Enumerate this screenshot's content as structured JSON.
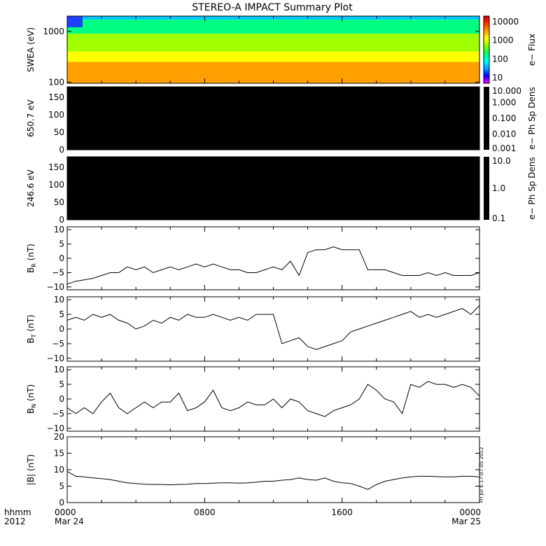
{
  "title": "STEREO-A IMPACT Summary Plot",
  "time_axis": {
    "label_line1": "hhmm",
    "label_line2": "2012",
    "ticks": [
      {
        "hour": 0,
        "label": "0000",
        "date": "Mar 24"
      },
      {
        "hour": 8,
        "label": "0800",
        "date": ""
      },
      {
        "hour": 16,
        "label": "1600",
        "date": ""
      },
      {
        "hour": 24,
        "label": "0000",
        "date": "Mar 25"
      }
    ]
  },
  "timestamp": "Fri Jul  6 17:07:05 2012",
  "colors": {
    "trace": "#000000",
    "frame": "#000000",
    "panel_fill": "#000000"
  },
  "chart_data": [
    {
      "type": "heatmap",
      "panel": "swea",
      "ylabel": "SWEA (eV)",
      "y_scale": "log",
      "ylim": [
        95,
        2000
      ],
      "yticks": [
        {
          "value": 100,
          "label": "100"
        },
        {
          "value": 1000,
          "label": "1000"
        }
      ],
      "colorbar": {
        "label": "e− Flux",
        "scale": "log",
        "range": [
          5,
          20000
        ],
        "ticks": [
          {
            "value": 10,
            "label": "10"
          },
          {
            "value": 100,
            "label": "100"
          },
          {
            "value": 1000,
            "label": "1000"
          },
          {
            "value": 10000,
            "label": "10000"
          }
        ],
        "colors": [
          "#ff00ff",
          "#0000ff",
          "#00a0ff",
          "#00ffff",
          "#00ff60",
          "#80ff00",
          "#ffff00",
          "#ffa000",
          "#ff3000",
          "#d00000"
        ]
      },
      "band_edges_ev": [
        1700,
        900,
        400,
        250
      ]
    },
    {
      "type": "heatmap",
      "panel": "pad650",
      "ylabel": "650.7 eV",
      "ylim": [
        0,
        180
      ],
      "yticks": [
        {
          "value": 0,
          "label": "0"
        },
        {
          "value": 50,
          "label": "50"
        },
        {
          "value": 100,
          "label": "100"
        },
        {
          "value": 150,
          "label": "150"
        }
      ],
      "colorbar": {
        "label": "e− Ph Sp Dens",
        "scale": "log",
        "range": [
          0.001,
          10
        ],
        "ticks": [
          {
            "value": 10,
            "label": "10.000"
          },
          {
            "value": 1,
            "label": "1.000"
          },
          {
            "value": 0.1,
            "label": "0.100"
          },
          {
            "value": 0.01,
            "label": "0.010"
          },
          {
            "value": 0.001,
            "label": "0.001"
          }
        ]
      }
    },
    {
      "type": "heatmap",
      "panel": "pad246",
      "ylabel": "246.6 eV",
      "ylim": [
        0,
        180
      ],
      "yticks": [
        {
          "value": 0,
          "label": "0"
        },
        {
          "value": 50,
          "label": "50"
        },
        {
          "value": 100,
          "label": "100"
        },
        {
          "value": 150,
          "label": "150"
        }
      ],
      "colorbar": {
        "label": "e− Ph Sp Dens",
        "scale": "log",
        "range": [
          0.1,
          10
        ],
        "ticks": [
          {
            "value": 10,
            "label": "10.0"
          },
          {
            "value": 1,
            "label": "1.0"
          },
          {
            "value": 0.1,
            "label": "0.1"
          }
        ]
      }
    },
    {
      "type": "line",
      "panel": "br",
      "ylabel_main": "B",
      "ylabel_sub": "R",
      "ylabel_unit": " (nT)",
      "ylim": [
        -11,
        11
      ],
      "yticks": [
        {
          "value": 10,
          "label": "10"
        },
        {
          "value": 5,
          "label": "5"
        },
        {
          "value": 0,
          "label": "0"
        },
        {
          "value": -5,
          "label": "−5"
        },
        {
          "value": -10,
          "label": "−10"
        }
      ],
      "x_hours": [
        0,
        0.5,
        1,
        1.5,
        2,
        2.5,
        3,
        3.5,
        4,
        4.5,
        5,
        5.5,
        6,
        6.5,
        7,
        7.5,
        8,
        8.5,
        9,
        9.5,
        10,
        10.5,
        11,
        11.5,
        12,
        12.5,
        13,
        13.5,
        14,
        14.5,
        15,
        15.5,
        16,
        16.5,
        17,
        17.5,
        18,
        18.5,
        19,
        19.5,
        20,
        20.5,
        21,
        21.5,
        22,
        22.5,
        23,
        23.5,
        24
      ],
      "y": [
        -9,
        -8,
        -7.5,
        -7,
        -6,
        -5,
        -5,
        -3,
        -4,
        -3,
        -5,
        -4,
        -3,
        -4,
        -3,
        -2,
        -3,
        -2,
        -3,
        -4,
        -4,
        -5,
        -5,
        -4,
        -3,
        -4,
        -1,
        -6,
        2,
        3,
        3,
        4,
        3,
        3,
        3,
        -4,
        -4,
        -4,
        -5,
        -6,
        -6,
        -6,
        -5,
        -6,
        -5,
        -6,
        -6,
        -6,
        -5
      ]
    },
    {
      "type": "line",
      "panel": "bt",
      "ylabel_main": "B",
      "ylabel_sub": "T",
      "ylabel_unit": " (nT)",
      "ylim": [
        -11,
        11
      ],
      "yticks": [
        {
          "value": 10,
          "label": "10"
        },
        {
          "value": 5,
          "label": "5"
        },
        {
          "value": 0,
          "label": "0"
        },
        {
          "value": -5,
          "label": "−5"
        },
        {
          "value": -10,
          "label": "−10"
        }
      ],
      "x_hours": [
        0,
        0.5,
        1,
        1.5,
        2,
        2.5,
        3,
        3.5,
        4,
        4.5,
        5,
        5.5,
        6,
        6.5,
        7,
        7.5,
        8,
        8.5,
        9,
        9.5,
        10,
        10.5,
        11,
        11.5,
        12,
        12.5,
        13,
        13.5,
        14,
        14.5,
        15,
        15.5,
        16,
        16.5,
        17,
        17.5,
        18,
        18.5,
        19,
        19.5,
        20,
        20.5,
        21,
        21.5,
        22,
        22.5,
        23,
        23.5,
        24
      ],
      "y": [
        3,
        4,
        3,
        5,
        4,
        5,
        3,
        2,
        0,
        1,
        3,
        2,
        4,
        3,
        5,
        4,
        4,
        5,
        4,
        3,
        4,
        3,
        5,
        5,
        5,
        -5,
        -4,
        -3,
        -6,
        -7,
        -6,
        -5,
        -4,
        -1,
        0,
        1,
        2,
        3,
        4,
        5,
        6,
        4,
        5,
        4,
        5,
        6,
        7,
        5,
        8
      ]
    },
    {
      "type": "line",
      "panel": "bn",
      "ylabel_main": "B",
      "ylabel_sub": "N",
      "ylabel_unit": " (nT)",
      "ylim": [
        -11,
        11
      ],
      "yticks": [
        {
          "value": 10,
          "label": "10"
        },
        {
          "value": 5,
          "label": "5"
        },
        {
          "value": 0,
          "label": "0"
        },
        {
          "value": -5,
          "label": "−5"
        },
        {
          "value": -10,
          "label": "−10"
        }
      ],
      "x_hours": [
        0,
        0.5,
        1,
        1.5,
        2,
        2.5,
        3,
        3.5,
        4,
        4.5,
        5,
        5.5,
        6,
        6.5,
        7,
        7.5,
        8,
        8.5,
        9,
        9.5,
        10,
        10.5,
        11,
        11.5,
        12,
        12.5,
        13,
        13.5,
        14,
        14.5,
        15,
        15.5,
        16,
        16.5,
        17,
        17.5,
        18,
        18.5,
        19,
        19.5,
        20,
        20.5,
        21,
        21.5,
        22,
        22.5,
        23,
        23.5,
        24
      ],
      "y": [
        -3,
        -5,
        -3,
        -5,
        -1,
        2,
        -3,
        -5,
        -3,
        -1,
        -3,
        -1,
        -1,
        2,
        -4,
        -3,
        -1,
        3,
        -3,
        -4,
        -3,
        -1,
        -2,
        -2,
        0,
        -3,
        0,
        -1,
        -4,
        -5,
        -6,
        -4,
        -3,
        -2,
        0,
        5,
        3,
        0,
        -1,
        -5,
        5,
        4,
        6,
        5,
        5,
        4,
        5,
        4,
        1
      ]
    },
    {
      "type": "line",
      "panel": "bmag",
      "ylabel_main": "|B| (nT)",
      "ylim": [
        0,
        20
      ],
      "yticks": [
        {
          "value": 20,
          "label": "20"
        },
        {
          "value": 15,
          "label": "15"
        },
        {
          "value": 10,
          "label": "10"
        },
        {
          "value": 5,
          "label": "5"
        },
        {
          "value": 0,
          "label": "0"
        }
      ],
      "x_hours": [
        0,
        0.5,
        1,
        1.5,
        2,
        2.5,
        3,
        3.5,
        4,
        4.5,
        5,
        5.5,
        6,
        6.5,
        7,
        7.5,
        8,
        8.5,
        9,
        9.5,
        10,
        10.5,
        11,
        11.5,
        12,
        12.5,
        13,
        13.5,
        14,
        14.5,
        15,
        15.5,
        16,
        16.5,
        17,
        17.5,
        18,
        18.5,
        19,
        19.5,
        20,
        20.5,
        21,
        21.5,
        22,
        22.5,
        23,
        23.5,
        24
      ],
      "y": [
        9.5,
        8,
        7.8,
        7.5,
        7.3,
        7,
        6.5,
        6,
        5.8,
        5.6,
        5.5,
        5.5,
        5.4,
        5.5,
        5.6,
        5.8,
        5.8,
        5.9,
        6,
        6,
        5.9,
        6,
        6.2,
        6.5,
        6.5,
        6.8,
        7,
        7.5,
        7,
        6.8,
        7.5,
        6.5,
        6,
        5.8,
        5,
        4,
        5.5,
        6.5,
        7,
        7.5,
        7.8,
        8,
        8,
        7.9,
        7.8,
        7.8,
        8,
        8,
        7.8
      ]
    }
  ]
}
